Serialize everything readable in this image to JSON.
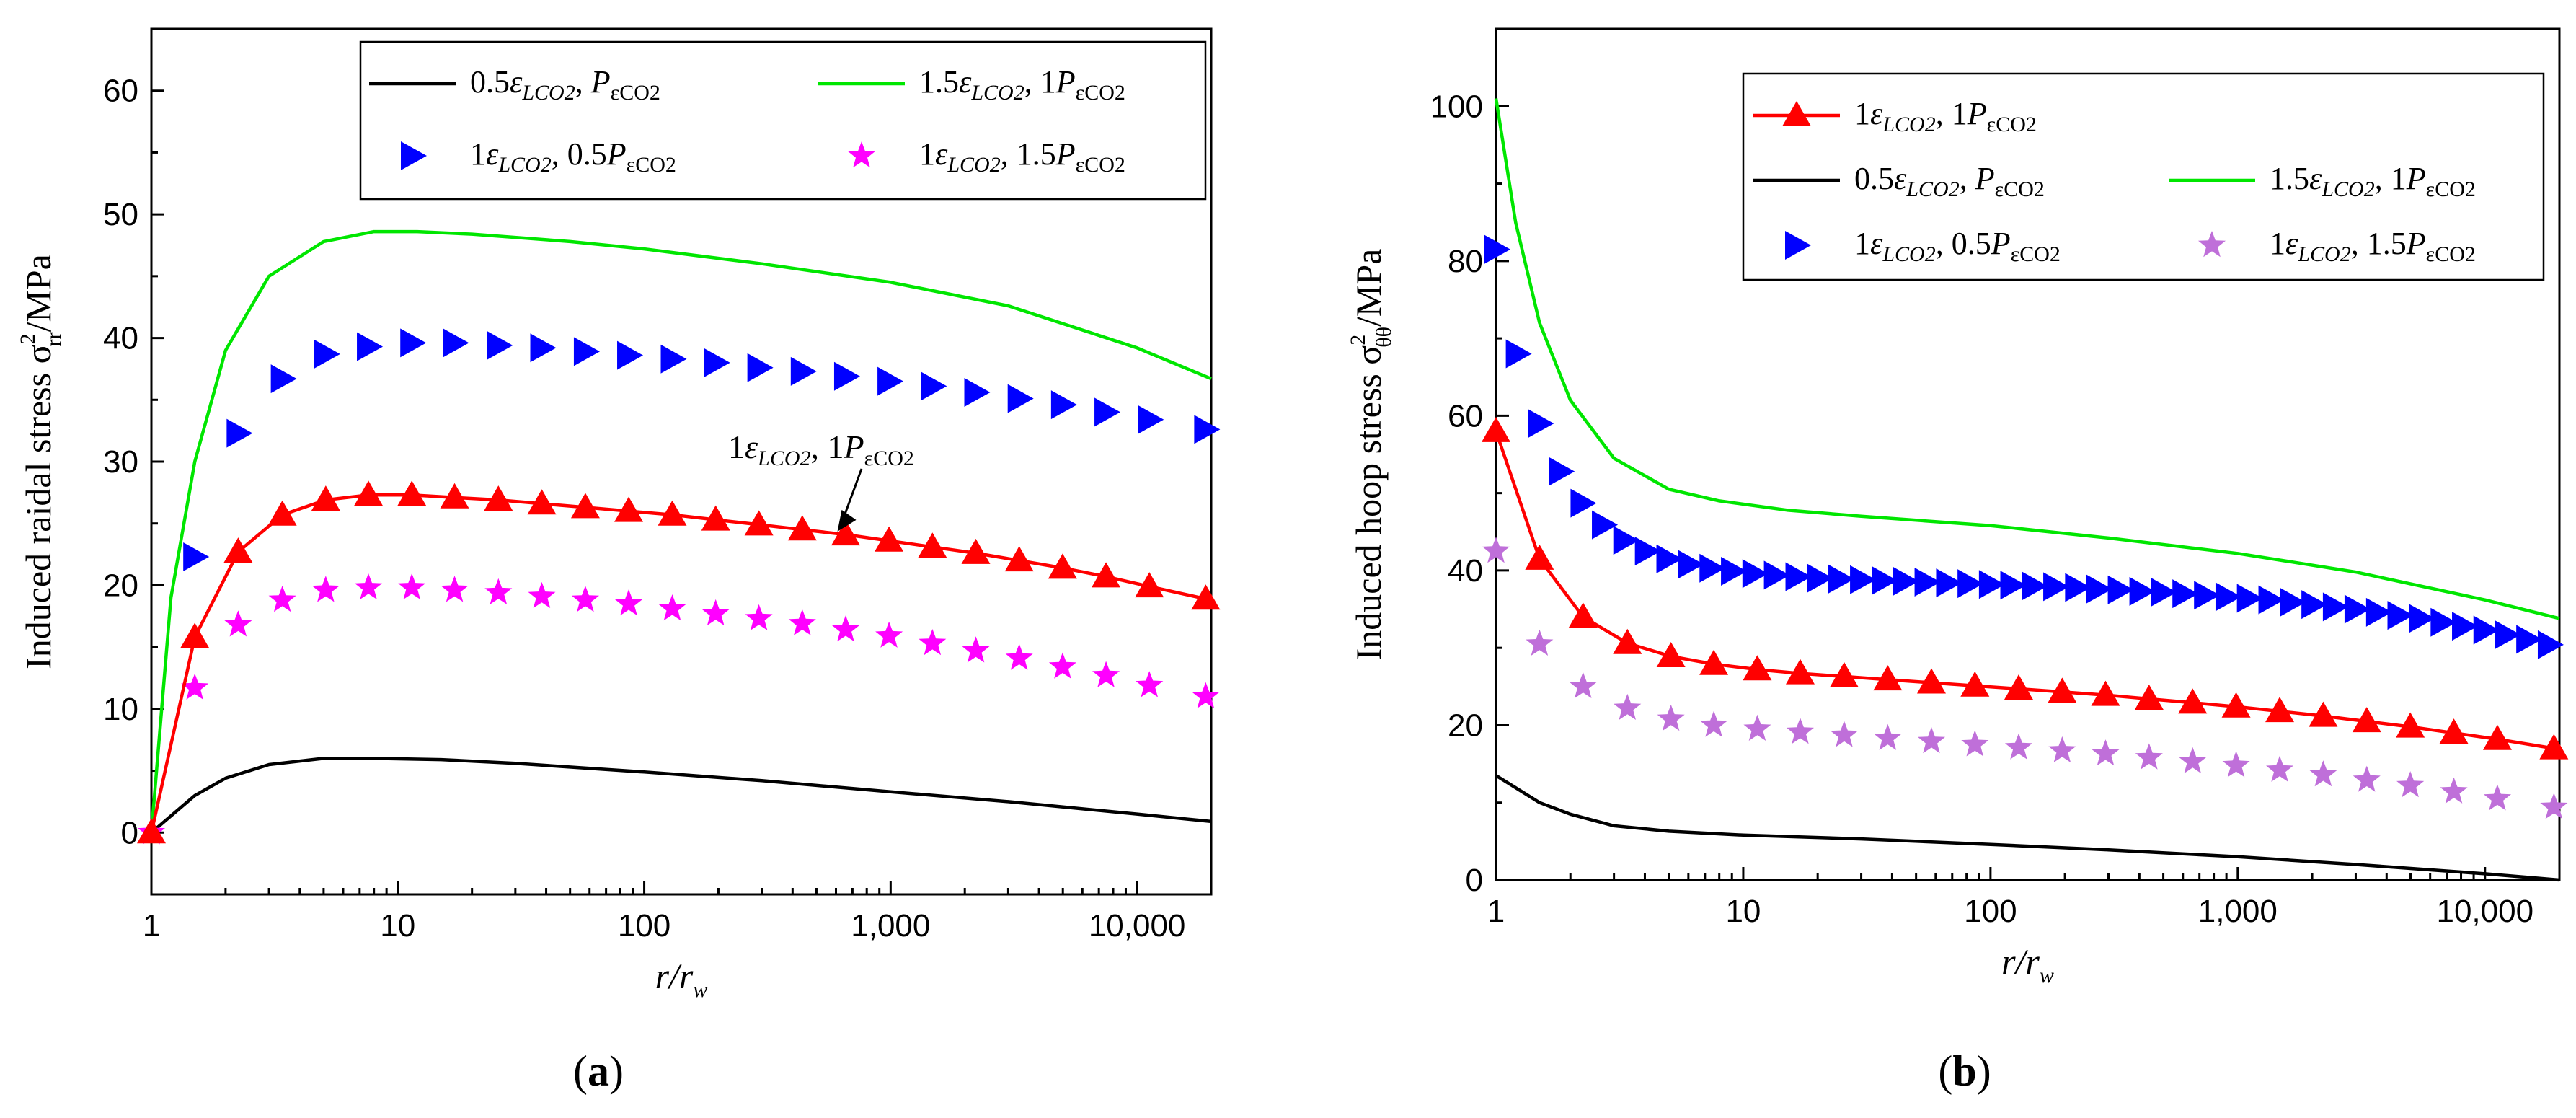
{
  "chart_data": [
    {
      "type": "line",
      "panel_label": "(a)",
      "xscale": "log",
      "xlim": [
        1,
        20000
      ],
      "ylim": [
        -5,
        65
      ],
      "xticks": [
        1,
        10,
        100,
        1000,
        10000
      ],
      "xtick_labels": [
        "1",
        "10",
        "100",
        "1,000",
        "10,000"
      ],
      "yticks": [
        0,
        10,
        20,
        30,
        40,
        50,
        60
      ],
      "ytick_labels": [
        "0",
        "10",
        "20",
        "30",
        "40",
        "50",
        "60"
      ],
      "ylabel": {
        "main": "Induced raidal stress σ",
        "sup": "2",
        "sub": "rr",
        "unit": "/MPa"
      },
      "xlabel": {
        "main": "r/r",
        "sub": "w"
      },
      "annotation": {
        "coef1": "1",
        "eps": "ε",
        "eps_sub": "LCO2",
        "sep": ", ",
        "coef2": "1",
        "p": "P",
        "p_sub": "εCO2",
        "x": 600,
        "y": 24
      },
      "legend_position": "top-right",
      "series": [
        {
          "name": "0.5ε_LCO2, P_εCO2",
          "label": {
            "coef1": "0.5",
            "eps": "ε",
            "eps_sub": "LCO2",
            "sep": ", ",
            "coef2": "",
            "p": "P",
            "p_sub": "εCO2"
          },
          "style": "line",
          "color": "#000000",
          "x": [
            1,
            1.5,
            2,
            3,
            5,
            8,
            15,
            30,
            100,
            300,
            1000,
            3000,
            10000,
            20000
          ],
          "y": [
            0,
            3.0,
            4.4,
            5.5,
            6.0,
            6.0,
            5.9,
            5.6,
            4.9,
            4.2,
            3.3,
            2.5,
            1.5,
            0.9
          ]
        },
        {
          "name": "1.5ε_LCO2, 1P_εCO2",
          "label": {
            "coef1": "1.5",
            "eps": "ε",
            "eps_sub": "LCO2",
            "sep": ", ",
            "coef2": "1",
            "p": "P",
            "p_sub": "εCO2"
          },
          "style": "line",
          "color": "#00e600",
          "x": [
            1,
            1.2,
            1.5,
            2,
            3,
            5,
            8,
            12,
            20,
            50,
            100,
            300,
            1000,
            3000,
            10000,
            20000
          ],
          "y": [
            0,
            19,
            30,
            39,
            45,
            47.8,
            48.6,
            48.6,
            48.4,
            47.8,
            47.2,
            46,
            44.5,
            42.6,
            39.2,
            36.7
          ]
        },
        {
          "name": "1ε_LCO2, 0.5P_εCO2",
          "label": {
            "coef1": "1",
            "eps": "ε",
            "eps_sub": "LCO2",
            "sep": ", ",
            "coef2": "0.5",
            "p": "P",
            "p_sub": "εCO2"
          },
          "style": "marker",
          "marker": "triangle-right",
          "color": "#0000ff",
          "x": [
            1.5,
            2.25,
            3.4,
            5.1,
            7.6,
            11.4,
            17,
            25.6,
            38.4,
            57.7,
            86.5,
            130,
            195,
            292,
            438,
            657,
            985,
            1478,
            2217,
            3325,
            4988,
            7482,
            11223,
            19000
          ],
          "y": [
            22.3,
            32.3,
            36.7,
            38.7,
            39.3,
            39.6,
            39.6,
            39.4,
            39.2,
            38.9,
            38.6,
            38.3,
            38.0,
            37.6,
            37.3,
            36.9,
            36.5,
            36.1,
            35.6,
            35.1,
            34.6,
            34.0,
            33.4,
            32.6
          ]
        },
        {
          "name": "1ε_LCO2, 1.5P_εCO2",
          "label": {
            "coef1": "1",
            "eps": "ε",
            "eps_sub": "LCO2",
            "sep": ", ",
            "coef2": "1.5",
            "p": "P",
            "p_sub": "εCO2"
          },
          "style": "marker",
          "marker": "star",
          "color": "#ff00ff",
          "x": [
            1,
            1.5,
            2.25,
            3.4,
            5.1,
            7.6,
            11.4,
            17,
            25.6,
            38.4,
            57.7,
            86.5,
            130,
            195,
            292,
            438,
            657,
            985,
            1478,
            2217,
            3325,
            4988,
            7482,
            11223,
            19000
          ],
          "y": [
            0,
            11.7,
            16.8,
            18.8,
            19.6,
            19.8,
            19.8,
            19.6,
            19.4,
            19.1,
            18.8,
            18.5,
            18.1,
            17.7,
            17.3,
            16.9,
            16.4,
            15.9,
            15.3,
            14.7,
            14.1,
            13.4,
            12.7,
            11.9,
            11.0
          ]
        },
        {
          "name": "1ε_LCO2, 1P_εCO2",
          "label": {
            "coef1": "1",
            "eps": "ε",
            "eps_sub": "LCO2",
            "sep": ", ",
            "coef2": "1",
            "p": "P",
            "p_sub": "εCO2"
          },
          "style": "line+marker",
          "marker": "triangle-up",
          "color": "#ff0000",
          "in_legend": false,
          "x": [
            1,
            1.5,
            2.25,
            3.4,
            5.1,
            7.6,
            11.4,
            17,
            25.6,
            38.4,
            57.7,
            86.5,
            130,
            195,
            292,
            438,
            657,
            985,
            1478,
            2217,
            3325,
            4988,
            7482,
            11223,
            19000
          ],
          "y": [
            0,
            15.8,
            22.7,
            25.7,
            26.9,
            27.3,
            27.3,
            27.1,
            26.9,
            26.6,
            26.3,
            26.0,
            25.7,
            25.3,
            24.9,
            24.5,
            24.1,
            23.6,
            23.1,
            22.6,
            22.0,
            21.4,
            20.7,
            19.9,
            18.9
          ]
        }
      ]
    },
    {
      "type": "line",
      "panel_label": "(b)",
      "xscale": "log",
      "xlim": [
        1,
        20000
      ],
      "ylim": [
        0,
        110
      ],
      "xticks": [
        1,
        10,
        100,
        1000,
        10000
      ],
      "xtick_labels": [
        "1",
        "10",
        "100",
        "1,000",
        "10,000"
      ],
      "yticks": [
        0,
        20,
        40,
        60,
        80,
        100
      ],
      "ytick_labels": [
        "0",
        "20",
        "40",
        "60",
        "80",
        "100"
      ],
      "ylabel": {
        "main": "Induced hoop stress σ",
        "sup": "2",
        "sub": "θθ",
        "unit": "/MPa"
      },
      "xlabel": {
        "main": "r/r",
        "sub": "w"
      },
      "legend_position": "top-right",
      "series": [
        {
          "name": "1ε_LCO2, 1P_εCO2",
          "label": {
            "coef1": "1",
            "eps": "ε",
            "eps_sub": "LCO2",
            "sep": ", ",
            "coef2": "1",
            "p": "P",
            "p_sub": "εCO2"
          },
          "style": "line+marker",
          "marker": "triangle-up",
          "color": "#ff0000",
          "x": [
            1,
            1.5,
            2.25,
            3.4,
            5.1,
            7.6,
            11.4,
            17,
            25.6,
            38.4,
            57.7,
            86.5,
            130,
            195,
            292,
            438,
            657,
            985,
            1478,
            2217,
            3325,
            4988,
            7482,
            11223,
            19000
          ],
          "y": [
            58,
            41.5,
            34,
            30.6,
            28.9,
            27.9,
            27.2,
            26.7,
            26.3,
            25.9,
            25.5,
            25.1,
            24.7,
            24.3,
            23.9,
            23.4,
            22.9,
            22.4,
            21.8,
            21.2,
            20.5,
            19.8,
            19.0,
            18.2,
            17.0
          ]
        },
        {
          "name": "0.5ε_LCO2, P_εCO2",
          "label": {
            "coef1": "0.5",
            "eps": "ε",
            "eps_sub": "LCO2",
            "sep": ", ",
            "coef2": "",
            "p": "P",
            "p_sub": "εCO2"
          },
          "style": "line",
          "color": "#000000",
          "x": [
            1,
            1.5,
            2,
            3,
            5,
            10,
            30,
            100,
            300,
            1000,
            3000,
            10000,
            20000
          ],
          "y": [
            13.5,
            10.0,
            8.5,
            7.0,
            6.3,
            5.8,
            5.3,
            4.6,
            3.9,
            3.0,
            2.0,
            0.8,
            0
          ]
        },
        {
          "name": "1.5ε_LCO2, 1P_εCO2",
          "label": {
            "coef1": "1.5",
            "eps": "ε",
            "eps_sub": "LCO2",
            "sep": ", ",
            "coef2": "1",
            "p": "P",
            "p_sub": "εCO2"
          },
          "style": "line",
          "color": "#00e600",
          "x": [
            1,
            1.2,
            1.5,
            2,
            3,
            5,
            8,
            15,
            30,
            100,
            300,
            1000,
            3000,
            10000,
            20000
          ],
          "y": [
            101,
            85,
            72,
            62,
            54.5,
            50.5,
            49,
            47.8,
            47,
            45.8,
            44.2,
            42.2,
            39.8,
            36.2,
            33.8
          ]
        },
        {
          "name": "1ε_LCO2, 0.5P_εCO2",
          "label": {
            "coef1": "1",
            "eps": "ε",
            "eps_sub": "LCO2",
            "sep": ", ",
            "coef2": "0.5",
            "p": "P",
            "p_sub": "εCO2"
          },
          "style": "marker",
          "marker": "triangle-right",
          "color": "#0000ff",
          "x": [
            1,
            1.22,
            1.5,
            1.82,
            2.23,
            2.72,
            3.32,
            4.06,
            4.96,
            6.06,
            7.41,
            9.05,
            11.05,
            13.5,
            16.5,
            20.2,
            24.6,
            30.1,
            36.8,
            44.9,
            54.9,
            67.1,
            81.9,
            100,
            122,
            149,
            182,
            223,
            272,
            332,
            406,
            496,
            606,
            741,
            905,
            1105,
            1350,
            1650,
            2015,
            2460,
            3010,
            3680,
            4490,
            5490,
            6710,
            8190,
            10000,
            12200,
            14900,
            18200
          ],
          "y": [
            81.5,
            68,
            59,
            52.8,
            48.7,
            45.9,
            43.9,
            42.5,
            41.5,
            40.8,
            40.3,
            39.9,
            39.6,
            39.4,
            39.2,
            39.0,
            38.9,
            38.8,
            38.7,
            38.6,
            38.5,
            38.4,
            38.3,
            38.2,
            38.1,
            38.0,
            37.9,
            37.8,
            37.6,
            37.5,
            37.3,
            37.2,
            37.0,
            36.8,
            36.6,
            36.4,
            36.2,
            35.9,
            35.6,
            35.3,
            35.0,
            34.6,
            34.2,
            33.8,
            33.3,
            32.8,
            32.3,
            31.7,
            31.1,
            30.4
          ]
        },
        {
          "name": "1ε_LCO2, 1.5P_εCO2",
          "label": {
            "coef1": "1",
            "eps": "ε",
            "eps_sub": "LCO2",
            "sep": ", ",
            "coef2": "1.5",
            "p": "P",
            "p_sub": "εCO2"
          },
          "style": "marker",
          "marker": "star",
          "color": "#bf6fd9",
          "x": [
            1,
            1.5,
            2.25,
            3.4,
            5.1,
            7.6,
            11.4,
            17,
            25.6,
            38.4,
            57.7,
            86.5,
            130,
            195,
            292,
            438,
            657,
            985,
            1478,
            2217,
            3325,
            4988,
            7482,
            11223,
            19000
          ],
          "y": [
            42.5,
            30.5,
            25,
            22.2,
            20.8,
            20.0,
            19.5,
            19.1,
            18.7,
            18.3,
            17.9,
            17.5,
            17.1,
            16.7,
            16.3,
            15.8,
            15.3,
            14.8,
            14.2,
            13.6,
            12.9,
            12.2,
            11.4,
            10.5,
            9.4
          ]
        }
      ]
    }
  ]
}
